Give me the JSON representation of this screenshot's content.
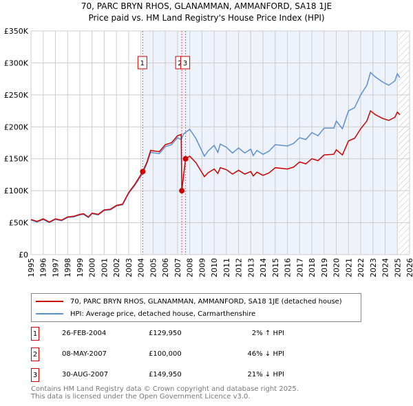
{
  "title": "70, PARC BRYN RHOS, GLANAMMAN, AMMANFORD, SA18 1JE",
  "subtitle": "Price paid vs. HM Land Registry's House Price Index (HPI)",
  "colors": {
    "property": "#cc0000",
    "hpi": "#5b8fd0",
    "shade": "#eef3fb"
  },
  "chart_data": {
    "type": "line",
    "xlim": [
      1995,
      2026
    ],
    "ylim": [
      0,
      350000
    ],
    "yticks": [
      0,
      50000,
      100000,
      150000,
      200000,
      250000,
      300000,
      350000
    ],
    "ytick_labels": [
      "£0",
      "£50K",
      "£100K",
      "£150K",
      "£200K",
      "£250K",
      "£300K",
      "£350K"
    ],
    "xticks": [
      "1995",
      "1996",
      "1997",
      "1998",
      "1999",
      "2000",
      "2001",
      "2002",
      "2003",
      "2004",
      "2005",
      "2006",
      "2007",
      "2008",
      "2009",
      "2010",
      "2011",
      "2012",
      "2013",
      "2014",
      "2015",
      "2016",
      "2017",
      "2018",
      "2019",
      "2020",
      "2021",
      "2022",
      "2023",
      "2024",
      "2025",
      "2026"
    ],
    "shaded_range": [
      2004.15,
      2025.0
    ],
    "hatched_from": 2025.1,
    "series": [
      {
        "name": "70, PARC BRYN RHOS, GLANAMMAN, AMMANFORD, SA18 1JE (detached house)",
        "color": "#cc0000",
        "x": [
          1995,
          1995.5,
          1996,
          1996.5,
          1997,
          1997.5,
          1998,
          1998.5,
          1999,
          1999.3,
          1999.7,
          2000,
          2000.5,
          2001,
          2001.5,
          2002,
          2002.5,
          2003,
          2003.5,
          2004.15,
          2004.5,
          2004.8,
          2005.5,
          2006,
          2006.5,
          2007,
          2007.3,
          2007.35,
          2007.66,
          2008,
          2008.5,
          2009.2,
          2009.5,
          2010,
          2010.3,
          2010.5,
          2011,
          2011.5,
          2012,
          2012.5,
          2013,
          2013.2,
          2013.5,
          2014,
          2014.5,
          2015,
          2016,
          2016.5,
          2017,
          2017.5,
          2018,
          2018.5,
          2019,
          2019.8,
          2020,
          2020.5,
          2021,
          2021.5,
          2022,
          2022.5,
          2022.8,
          2023.2,
          2023.8,
          2024.3,
          2024.8,
          2025,
          2025.2
        ],
        "y": [
          55000,
          52000,
          56000,
          51000,
          56000,
          54000,
          59000,
          60000,
          63000,
          64000,
          59000,
          65000,
          63000,
          70000,
          71000,
          77000,
          79000,
          97000,
          110000,
          129950,
          145000,
          163000,
          161000,
          172000,
          175000,
          186000,
          188000,
          100000,
          149950,
          154000,
          144000,
          122000,
          128000,
          134000,
          127000,
          136000,
          133000,
          126000,
          132000,
          126000,
          130000,
          123000,
          129000,
          124000,
          128000,
          136000,
          134000,
          137000,
          145000,
          142000,
          150000,
          147000,
          156000,
          157000,
          164000,
          156000,
          178000,
          182000,
          197000,
          209000,
          225000,
          219000,
          213000,
          210000,
          215000,
          223000,
          219000
        ]
      },
      {
        "name": "HPI: Average price, detached house, Carmarthenshire",
        "color": "#5b8fd0",
        "x": [
          1995,
          1995.5,
          1996,
          1996.5,
          1997,
          1997.5,
          1998,
          1998.5,
          1999,
          1999.3,
          1999.7,
          2000,
          2000.5,
          2001,
          2001.5,
          2002,
          2002.5,
          2003,
          2003.5,
          2004.15,
          2004.5,
          2004.8,
          2005.5,
          2006,
          2006.5,
          2007,
          2007.3,
          2007.5,
          2008,
          2008.5,
          2009.2,
          2009.5,
          2010,
          2010.3,
          2010.5,
          2011,
          2011.5,
          2012,
          2012.5,
          2013,
          2013.2,
          2013.5,
          2014,
          2014.5,
          2015,
          2016,
          2016.5,
          2017,
          2017.5,
          2018,
          2018.5,
          2019,
          2019.8,
          2020,
          2020.5,
          2021,
          2021.5,
          2022,
          2022.5,
          2022.8,
          2023.2,
          2023.8,
          2024.3,
          2024.8,
          2025,
          2025.2
        ],
        "y": [
          54000,
          51000,
          55000,
          50000,
          55000,
          53000,
          58000,
          59000,
          62000,
          63000,
          58000,
          64000,
          62000,
          69000,
          70000,
          76000,
          78000,
          96000,
          108000,
          127000,
          143000,
          160000,
          158000,
          169000,
          172000,
          183000,
          180000,
          189000,
          196000,
          182000,
          154000,
          162000,
          171000,
          160000,
          173000,
          168000,
          159000,
          167000,
          159000,
          165000,
          155000,
          163000,
          157000,
          162000,
          172000,
          170000,
          174000,
          183000,
          180000,
          191000,
          186000,
          198000,
          198000,
          209000,
          197000,
          225000,
          230000,
          250000,
          265000,
          285000,
          278000,
          270000,
          265000,
          272000,
          283000,
          277000
        ]
      }
    ],
    "sales": [
      {
        "label": "1",
        "x": 2004.15,
        "y": 129950,
        "date": "26-FEB-2004",
        "price": "£129,950",
        "hpi": "2% ↑ HPI"
      },
      {
        "label": "2",
        "x": 2007.35,
        "y": 100000,
        "date": "08-MAY-2007",
        "price": "£100,000",
        "hpi": "46% ↓ HPI"
      },
      {
        "label": "3",
        "x": 2007.66,
        "y": 149950,
        "date": "30-AUG-2007",
        "price": "£149,950",
        "hpi": "21% ↓ HPI"
      }
    ]
  },
  "footer": [
    "Contains HM Land Registry data © Crown copyright and database right 2025.",
    "This data is licensed under the Open Government Licence v3.0."
  ]
}
